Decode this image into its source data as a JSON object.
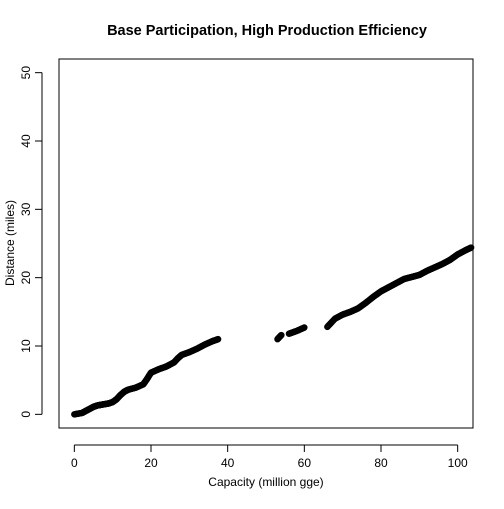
{
  "chart_data": {
    "type": "scatter",
    "title": "Base Participation, High Production Efficiency",
    "xlabel": "Capacity (million gge)",
    "ylabel": "Distance (miles)",
    "xlim": [
      -4,
      104
    ],
    "ylim": [
      -2,
      52
    ],
    "xticks": [
      0,
      20,
      40,
      60,
      80,
      100
    ],
    "yticks": [
      0,
      10,
      20,
      30,
      40,
      50
    ],
    "marker": "open-circle",
    "marker_color": "#000000",
    "grid": false,
    "legend": "none",
    "series": [
      {
        "segments": [
          [
            [
              0,
              0
            ],
            [
              2,
              0.2
            ],
            [
              3,
              0.5
            ],
            [
              4,
              0.8
            ],
            [
              5,
              1.1
            ],
            [
              6,
              1.3
            ],
            [
              7,
              1.4
            ],
            [
              8,
              1.5
            ],
            [
              9,
              1.6
            ],
            [
              10,
              1.8
            ],
            [
              11,
              2.2
            ],
            [
              12,
              2.8
            ],
            [
              13,
              3.3
            ],
            [
              14,
              3.6
            ],
            [
              16,
              3.9
            ],
            [
              18,
              4.4
            ],
            [
              19,
              5.2
            ],
            [
              20,
              6.1
            ],
            [
              22,
              6.6
            ],
            [
              24,
              7.0
            ],
            [
              26,
              7.6
            ],
            [
              27,
              8.2
            ],
            [
              28,
              8.7
            ],
            [
              30,
              9.1
            ],
            [
              32,
              9.6
            ],
            [
              34,
              10.2
            ],
            [
              36,
              10.7
            ],
            [
              37.5,
              11.0
            ]
          ],
          [
            [
              53,
              11.0
            ],
            [
              54,
              11.6
            ]
          ],
          [
            [
              56,
              11.8
            ],
            [
              58,
              12.2
            ],
            [
              60,
              12.7
            ]
          ],
          [
            [
              66,
              12.8
            ],
            [
              68,
              14.0
            ],
            [
              70,
              14.6
            ],
            [
              72,
              15.0
            ],
            [
              74,
              15.5
            ],
            [
              76,
              16.3
            ],
            [
              78,
              17.2
            ],
            [
              80,
              18.0
            ],
            [
              82,
              18.6
            ],
            [
              84,
              19.2
            ],
            [
              86,
              19.8
            ],
            [
              88,
              20.1
            ],
            [
              90,
              20.4
            ],
            [
              92,
              21.0
            ],
            [
              94,
              21.5
            ],
            [
              96,
              22.0
            ],
            [
              98,
              22.6
            ],
            [
              100,
              23.4
            ],
            [
              102,
              24.0
            ],
            [
              103.5,
              24.4
            ]
          ]
        ]
      }
    ]
  }
}
